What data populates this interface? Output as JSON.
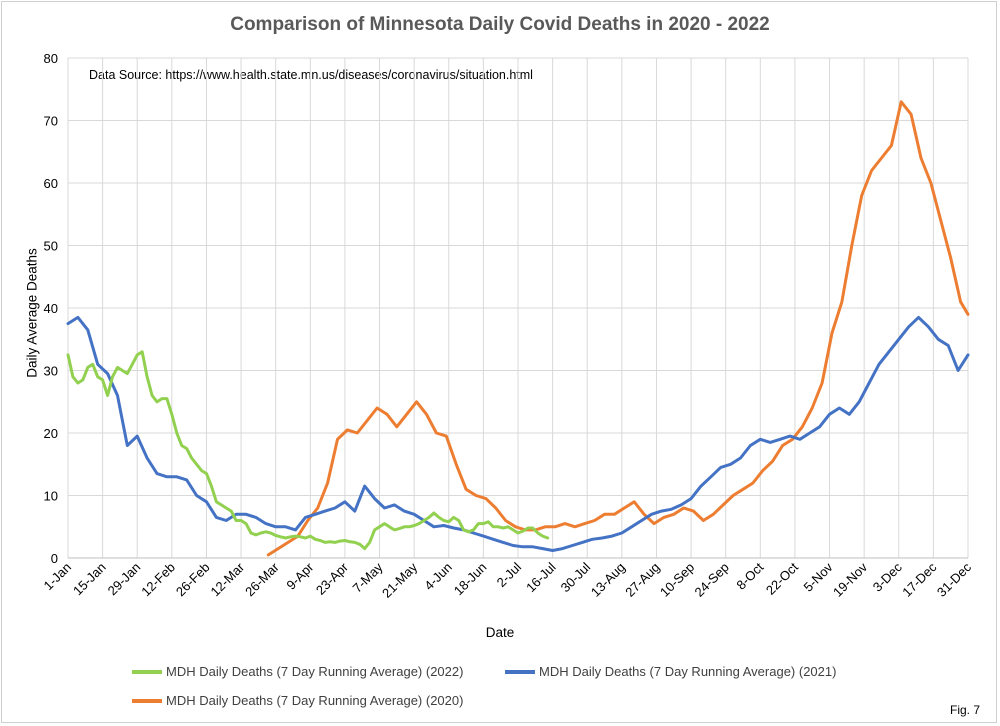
{
  "chart_data": {
    "type": "line",
    "title": "Comparison of Minnesota Daily Covid Deaths in 2020 - 2022",
    "annotation": "Data Source: https://www.health.state.mn.us/diseases/coronavirus/situation.html",
    "xlabel": "Date",
    "ylabel": "Daily Average Deaths",
    "ylim": [
      0,
      80
    ],
    "yticks": [
      0,
      10,
      20,
      30,
      40,
      50,
      60,
      70,
      80
    ],
    "xlim": [
      "1-Jan",
      "31-Dec"
    ],
    "xticks": [
      "1-Jan",
      "15-Jan",
      "29-Jan",
      "12-Feb",
      "26-Feb",
      "12-Mar",
      "26-Mar",
      "9-Apr",
      "23-Apr",
      "7-May",
      "21-May",
      "4-Jun",
      "18-Jun",
      "2-Jul",
      "16-Jul",
      "30-Jul",
      "13-Aug",
      "27-Aug",
      "10-Sep",
      "24-Sep",
      "8-Oct",
      "22-Oct",
      "5-Nov",
      "19-Nov",
      "3-Dec",
      "17-Dec",
      "31-Dec"
    ],
    "grid": true,
    "legend_position": "bottom",
    "series": [
      {
        "name": "MDH Daily Deaths (7 Day Running Average) (2022)",
        "color": "#92d050",
        "x": [
          "1-Jan",
          "3-Jan",
          "5-Jan",
          "7-Jan",
          "9-Jan",
          "11-Jan",
          "13-Jan",
          "15-Jan",
          "17-Jan",
          "19-Jan",
          "21-Jan",
          "23-Jan",
          "25-Jan",
          "27-Jan",
          "29-Jan",
          "31-Jan",
          "2-Feb",
          "4-Feb",
          "6-Feb",
          "8-Feb",
          "10-Feb",
          "12-Feb",
          "14-Feb",
          "16-Feb",
          "18-Feb",
          "20-Feb",
          "22-Feb",
          "24-Feb",
          "26-Feb",
          "28-Feb",
          "2-Mar",
          "4-Mar",
          "6-Mar",
          "8-Mar",
          "10-Mar",
          "12-Mar",
          "14-Mar",
          "16-Mar",
          "18-Mar",
          "20-Mar",
          "22-Mar",
          "24-Mar",
          "26-Mar",
          "28-Mar",
          "30-Mar",
          "1-Apr",
          "3-Apr",
          "5-Apr",
          "7-Apr",
          "9-Apr",
          "11-Apr",
          "13-Apr",
          "15-Apr",
          "17-Apr",
          "19-Apr",
          "21-Apr",
          "23-Apr",
          "25-Apr",
          "27-Apr",
          "29-Apr",
          "1-May",
          "3-May",
          "5-May",
          "7-May",
          "9-May",
          "11-May",
          "13-May",
          "15-May",
          "17-May",
          "19-May",
          "21-May",
          "23-May",
          "25-May",
          "27-May",
          "29-May",
          "31-May",
          "2-Jun",
          "4-Jun",
          "6-Jun",
          "8-Jun",
          "10-Jun",
          "12-Jun",
          "14-Jun",
          "16-Jun",
          "18-Jun",
          "20-Jun",
          "22-Jun",
          "24-Jun",
          "26-Jun",
          "28-Jun",
          "30-Jun",
          "2-Jul",
          "4-Jul",
          "6-Jul",
          "8-Jul",
          "10-Jul",
          "12-Jul",
          "14-Jul"
        ],
        "values": [
          32.5,
          29,
          28,
          28.5,
          30.5,
          31,
          29,
          28.5,
          26,
          29,
          30.5,
          30,
          29.5,
          31,
          32.5,
          33,
          29,
          26,
          25,
          25.5,
          25.5,
          23,
          20,
          18,
          17.5,
          16,
          15,
          14,
          13.5,
          11.5,
          9,
          8.5,
          8,
          7.5,
          6,
          6,
          5.5,
          4,
          3.7,
          4,
          4.2,
          4,
          3.6,
          3.4,
          3.2,
          3.4,
          3.5,
          3.4,
          3.2,
          3.5,
          3,
          2.8,
          2.5,
          2.6,
          2.5,
          2.7,
          2.8,
          2.6,
          2.5,
          2.2,
          1.5,
          2.5,
          4.5,
          5,
          5.5,
          5,
          4.5,
          4.7,
          5,
          5,
          5.2,
          5.5,
          6,
          6.5,
          7.2,
          6.5,
          6,
          5.8,
          6.5,
          6,
          4.5,
          4.2,
          4.5,
          5.5,
          5.5,
          5.8,
          5,
          5,
          4.8,
          5,
          4.5,
          4,
          4.3,
          4.8,
          4.8,
          4,
          3.5,
          3.2
        ]
      },
      {
        "name": "MDH Daily Deaths (7 Day Running Average) (2021)",
        "color": "#4472c4",
        "x": [
          "1-Jan",
          "5-Jan",
          "9-Jan",
          "13-Jan",
          "17-Jan",
          "21-Jan",
          "25-Jan",
          "29-Jan",
          "2-Feb",
          "6-Feb",
          "10-Feb",
          "14-Feb",
          "18-Feb",
          "22-Feb",
          "26-Feb",
          "2-Mar",
          "6-Mar",
          "10-Mar",
          "14-Mar",
          "18-Mar",
          "22-Mar",
          "26-Mar",
          "30-Mar",
          "3-Apr",
          "7-Apr",
          "11-Apr",
          "15-Apr",
          "19-Apr",
          "23-Apr",
          "27-Apr",
          "1-May",
          "5-May",
          "9-May",
          "13-May",
          "17-May",
          "21-May",
          "25-May",
          "29-May",
          "2-Jun",
          "6-Jun",
          "10-Jun",
          "14-Jun",
          "18-Jun",
          "22-Jun",
          "26-Jun",
          "30-Jun",
          "4-Jul",
          "8-Jul",
          "12-Jul",
          "16-Jul",
          "20-Jul",
          "24-Jul",
          "28-Jul",
          "1-Aug",
          "5-Aug",
          "9-Aug",
          "13-Aug",
          "17-Aug",
          "21-Aug",
          "25-Aug",
          "29-Aug",
          "2-Sep",
          "6-Sep",
          "10-Sep",
          "14-Sep",
          "18-Sep",
          "22-Sep",
          "26-Sep",
          "30-Sep",
          "4-Oct",
          "8-Oct",
          "12-Oct",
          "16-Oct",
          "20-Oct",
          "24-Oct",
          "28-Oct",
          "1-Nov",
          "5-Nov",
          "9-Nov",
          "13-Nov",
          "17-Nov",
          "21-Nov",
          "25-Nov",
          "29-Nov",
          "3-Dec",
          "7-Dec",
          "11-Dec",
          "15-Dec",
          "19-Dec",
          "23-Dec",
          "27-Dec",
          "31-Dec"
        ],
        "values": [
          37.5,
          38.5,
          36.5,
          31,
          29.5,
          26,
          18,
          19.5,
          16,
          13.5,
          13,
          13,
          12.5,
          10,
          9,
          6.5,
          6,
          7,
          7,
          6.5,
          5.5,
          5,
          5,
          4.5,
          6.5,
          7,
          7.5,
          8,
          9,
          7.5,
          11.5,
          9.5,
          8,
          8.5,
          7.5,
          7,
          6,
          5,
          5.2,
          4.8,
          4.5,
          4,
          3.5,
          3,
          2.5,
          2,
          1.8,
          1.8,
          1.5,
          1.2,
          1.5,
          2,
          2.5,
          3,
          3.2,
          3.5,
          4,
          5,
          6,
          7,
          7.5,
          7.8,
          8.5,
          9.5,
          11.5,
          13,
          14.5,
          15,
          16,
          18,
          19,
          18.5,
          19,
          19.5,
          19,
          20,
          21,
          23,
          24,
          23,
          25,
          28,
          31,
          33,
          35,
          37,
          38.5,
          37,
          35,
          34,
          30,
          32.5
        ]
      },
      {
        "name": "MDH Daily Deaths (7 Day Running Average) (2020)",
        "color": "#ed7d31",
        "x": [
          "23-Mar",
          "27-Mar",
          "31-Mar",
          "4-Apr",
          "8-Apr",
          "12-Apr",
          "16-Apr",
          "20-Apr",
          "24-Apr",
          "28-Apr",
          "2-May",
          "6-May",
          "10-May",
          "14-May",
          "18-May",
          "22-May",
          "26-May",
          "30-May",
          "3-Jun",
          "7-Jun",
          "11-Jun",
          "15-Jun",
          "19-Jun",
          "23-Jun",
          "27-Jun",
          "1-Jul",
          "5-Jul",
          "9-Jul",
          "13-Jul",
          "17-Jul",
          "21-Jul",
          "25-Jul",
          "29-Jul",
          "2-Aug",
          "6-Aug",
          "10-Aug",
          "14-Aug",
          "18-Aug",
          "22-Aug",
          "26-Aug",
          "30-Aug",
          "3-Sep",
          "7-Sep",
          "11-Sep",
          "15-Sep",
          "19-Sep",
          "23-Sep",
          "27-Sep",
          "1-Oct",
          "5-Oct",
          "9-Oct",
          "13-Oct",
          "17-Oct",
          "21-Oct",
          "25-Oct",
          "29-Oct",
          "2-Nov",
          "6-Nov",
          "10-Nov",
          "14-Nov",
          "18-Nov",
          "22-Nov",
          "26-Nov",
          "30-Nov",
          "4-Dec",
          "8-Dec",
          "12-Dec",
          "16-Dec",
          "20-Dec",
          "24-Dec",
          "28-Dec",
          "31-Dec"
        ],
        "values": [
          0.5,
          1.5,
          2.5,
          3.5,
          6,
          8,
          12,
          19,
          20.5,
          20,
          22,
          24,
          23,
          21,
          23,
          25,
          23,
          20,
          19.5,
          15,
          11,
          10,
          9.5,
          8,
          6,
          5,
          4.5,
          4.5,
          5,
          5,
          5.5,
          5,
          5.5,
          6,
          7,
          7,
          8,
          9,
          7,
          5.5,
          6.5,
          7,
          8,
          7.5,
          6,
          7,
          8.5,
          10,
          11,
          12,
          14,
          15.5,
          18,
          19,
          21,
          24,
          28,
          36,
          41,
          50,
          58,
          62,
          64,
          66,
          73,
          71,
          64,
          60,
          54,
          48,
          41,
          39
        ]
      }
    ]
  },
  "fig_label": "Fig. 7"
}
